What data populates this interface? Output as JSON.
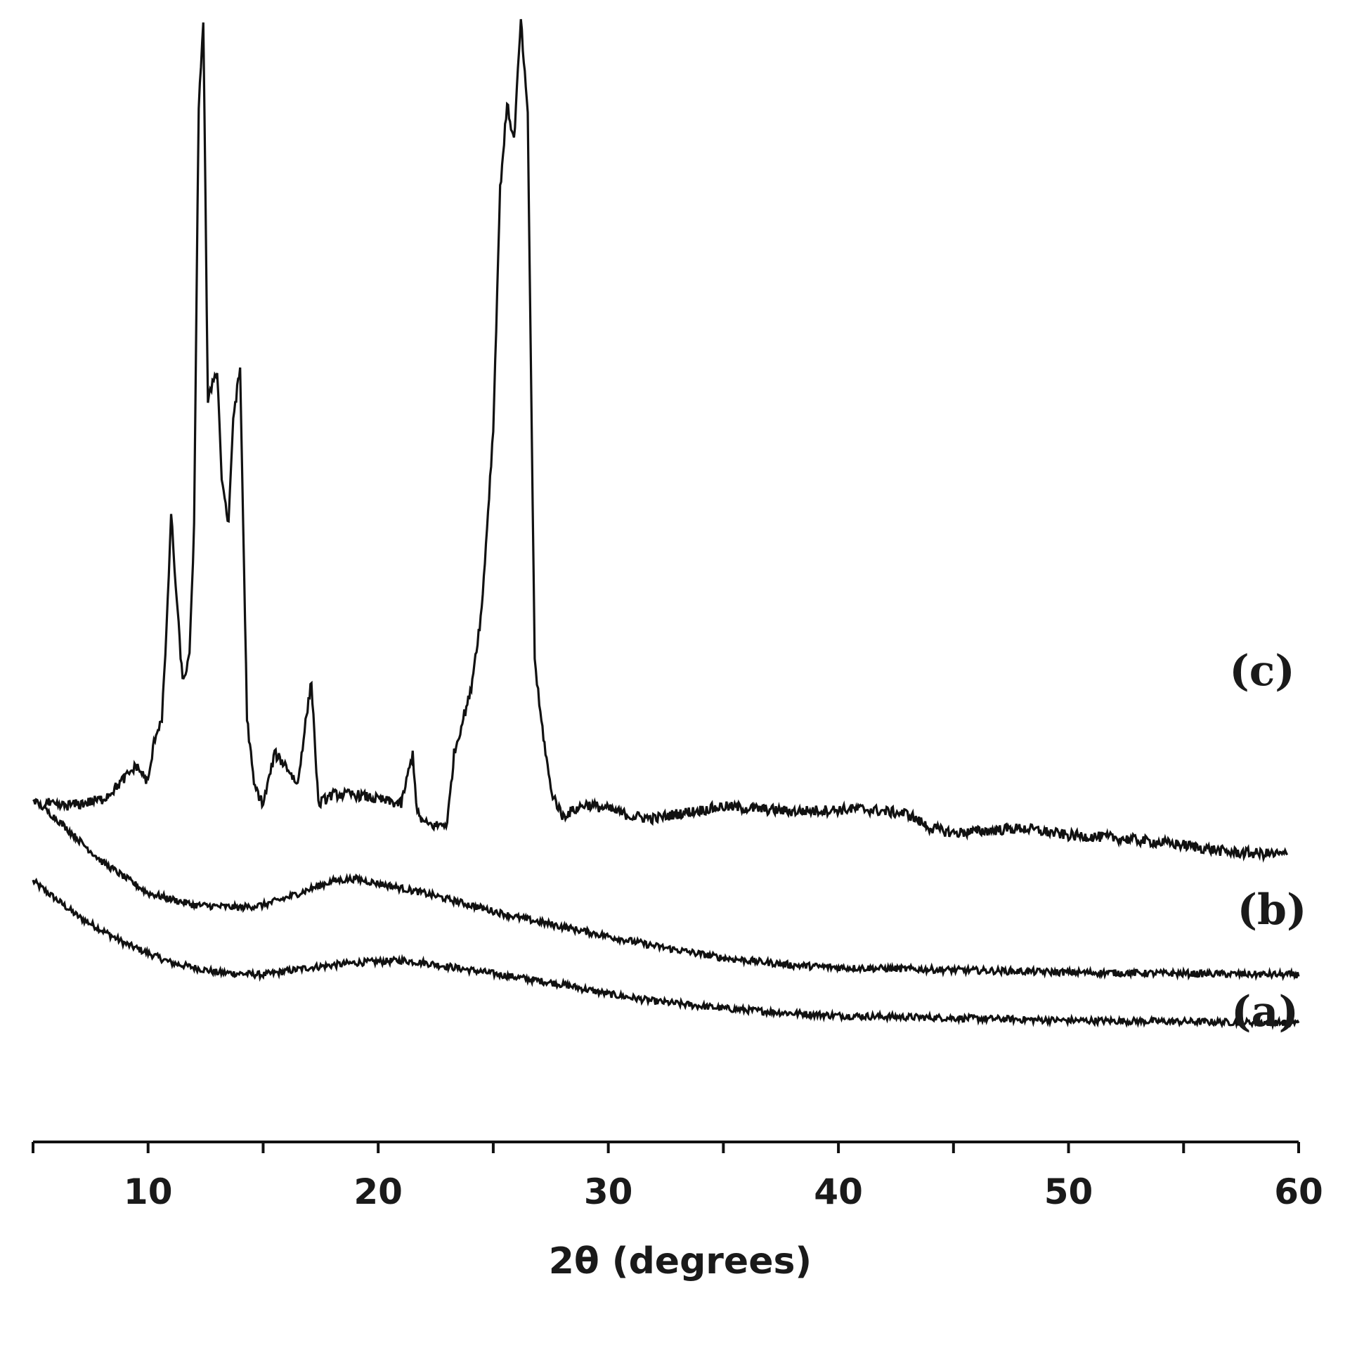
{
  "chart_data": {
    "type": "line",
    "xlabel": "2θ (degrees)",
    "ylabel": "",
    "xlim": [
      5,
      60
    ],
    "x_ticks": [
      10,
      20,
      30,
      40,
      50,
      60
    ],
    "y_axis_shown": false,
    "grid": false,
    "legend": "none; series labelled inline at right end of each trace",
    "series": [
      {
        "name": "(a)",
        "x": [
          5,
          7,
          9,
          11,
          13,
          15,
          17,
          19,
          21,
          22,
          24,
          26,
          28,
          30,
          32,
          35,
          38,
          40,
          45,
          50,
          55,
          60
        ],
        "y": [
          72,
          57,
          46,
          38,
          34,
          33,
          36,
          38,
          39,
          38,
          35,
          32,
          29,
          25,
          22,
          19,
          17,
          16,
          15,
          14,
          13.5,
          13
        ]
      },
      {
        "name": "(b)",
        "x": [
          5,
          6,
          8,
          10,
          12,
          14,
          15,
          16,
          18,
          19,
          20,
          22,
          24,
          26,
          28,
          30,
          32,
          35,
          38,
          40,
          45,
          50,
          55,
          60
        ],
        "y": [
          106,
          98,
          80,
          67,
          62,
          61,
          62,
          65,
          72,
          73,
          71,
          67,
          62,
          57,
          53,
          49,
          45,
          40,
          37,
          36,
          35,
          34,
          33.5,
          33
        ]
      },
      {
        "name": "(c)",
        "x": [
          5.5,
          6,
          7,
          8,
          8.5,
          9,
          9.5,
          10,
          10.3,
          10.6,
          10.8,
          11,
          11.2,
          11.5,
          11.8,
          12,
          12.2,
          12.4,
          12.6,
          12.8,
          13,
          13.2,
          13.5,
          13.7,
          14,
          14.3,
          14.6,
          15,
          15.5,
          16,
          16.5,
          16.8,
          17.1,
          17.4,
          18,
          19,
          20,
          21,
          21.5,
          21.7,
          22,
          22.5,
          23,
          23.3,
          23.7,
          24,
          24.5,
          25,
          25.3,
          25.6,
          25.9,
          26.2,
          26.5,
          26.8,
          27,
          27.5,
          28,
          29,
          30,
          31,
          32,
          33,
          35,
          38,
          41,
          43,
          44,
          45,
          48,
          50,
          52,
          55,
          57,
          59.5
        ],
        "y": [
          105,
          103,
          104,
          106,
          110,
          115,
          120,
          113,
          132,
          140,
          175,
          225,
          195,
          155,
          165,
          220,
          395,
          430,
          270,
          280,
          285,
          240,
          220,
          265,
          285,
          140,
          112,
          104,
          125,
          120,
          112,
          135,
          155,
          104,
          108,
          108,
          106,
          104,
          125,
          100,
          96,
          95,
          96,
          125,
          140,
          150,
          185,
          260,
          360,
          395,
          380,
          430,
          390,
          165,
          145,
          110,
          99,
          104,
          102,
          99,
          98,
          100,
          103,
          101,
          102,
          100,
          94,
          92,
          94,
          91,
          90,
          87,
          84,
          83
        ]
      }
    ],
    "series_labels": [
      "(a)",
      "(b)",
      "(c)"
    ],
    "tick_labels": [
      "10",
      "20",
      "30",
      "40",
      "50",
      "60"
    ]
  }
}
